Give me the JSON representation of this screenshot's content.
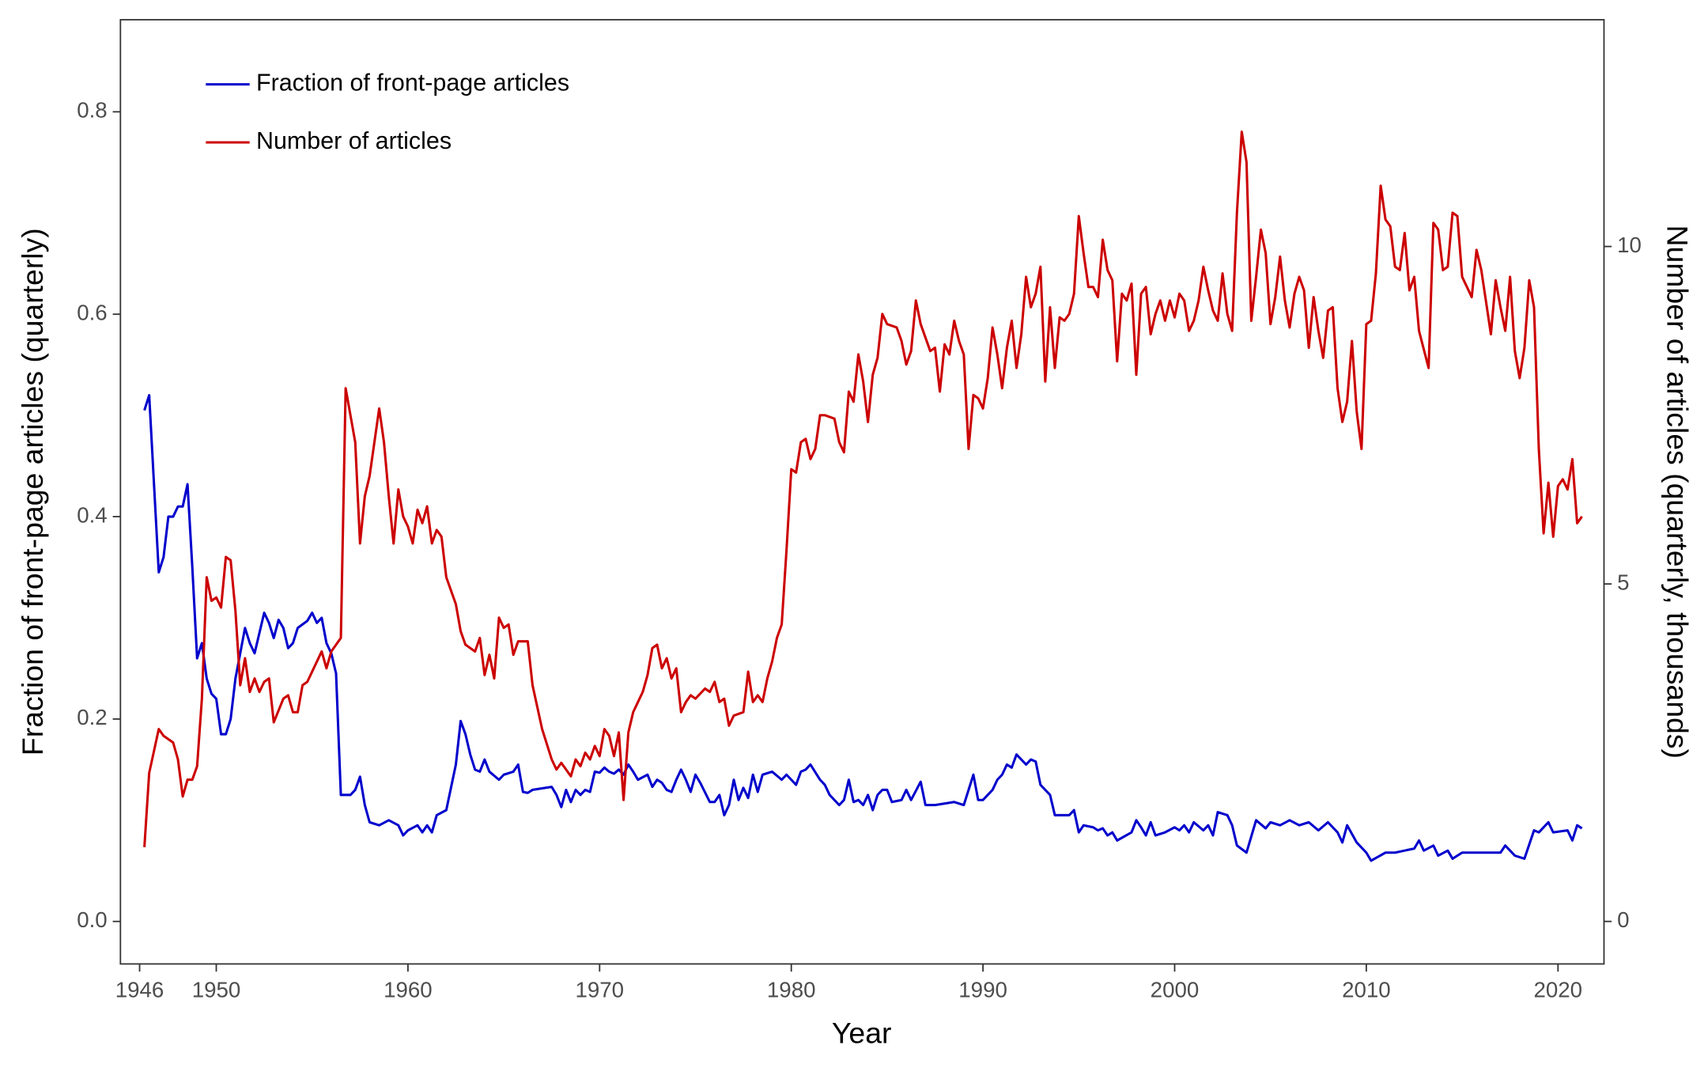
{
  "chart_data": {
    "type": "line",
    "x_label": "Year",
    "y_label": "Fraction of front-page articles (quarterly)",
    "y2_label": "Number of articles (quarterly, thousands)",
    "xlim": [
      1945.0,
      2022.4
    ],
    "xticks": [
      1946,
      1950,
      1960,
      1970,
      1980,
      1990,
      2000,
      2010,
      2020
    ],
    "ylim": [
      -0.042,
      0.891
    ],
    "yticks": [
      {
        "value": 0,
        "label": "0.0"
      },
      0.2,
      0.4,
      0.6,
      0.8
    ],
    "y2lim": [
      -0.63,
      13.36
    ],
    "y2ticks": [
      0,
      5,
      10
    ],
    "legend": "top-left",
    "grid": false,
    "series": [
      {
        "name": "Fraction of front-page articles",
        "color": "#0000cc",
        "x": [
          1946.25,
          1946.5,
          1947,
          1947.25,
          1947.5,
          1947.75,
          1948,
          1948.25,
          1948.5,
          1948.75,
          1949,
          1949.25,
          1949.5,
          1949.75,
          1950,
          1950.25,
          1950.5,
          1950.75,
          1951,
          1951.5,
          1951.75,
          1952,
          1952.5,
          1952.75,
          1953,
          1953.25,
          1953.5,
          1953.75,
          1954,
          1954.25,
          1954.75,
          1955,
          1955.25,
          1955.5,
          1955.75,
          1956,
          1956.25,
          1956.5,
          1957,
          1957.25,
          1957.5,
          1957.75,
          1958,
          1958.5,
          1959,
          1959.5,
          1959.75,
          1960,
          1960.5,
          1960.75,
          1961,
          1961.25,
          1961.5,
          1962,
          1962.5,
          1962.75,
          1963,
          1963.25,
          1963.5,
          1963.75,
          1964,
          1964.25,
          1964.75,
          1965,
          1965.5,
          1965.75,
          1966,
          1966.25,
          1966.5,
          1967.5,
          1967.75,
          1968,
          1968.25,
          1968.5,
          1968.75,
          1969,
          1969.25,
          1969.5,
          1969.75,
          1970,
          1970.25,
          1970.5,
          1970.75,
          1971,
          1971.25,
          1971.5,
          1971.75,
          1972,
          1972.5,
          1972.75,
          1973,
          1973.25,
          1973.5,
          1973.75,
          1974,
          1974.25,
          1974.5,
          1974.75,
          1975,
          1975.25,
          1975.75,
          1976,
          1976.25,
          1976.5,
          1976.75,
          1977,
          1977.25,
          1977.5,
          1977.75,
          1978,
          1978.25,
          1978.5,
          1979,
          1979.5,
          1979.75,
          1980,
          1980.25,
          1980.5,
          1980.75,
          1981,
          1981.5,
          1981.75,
          1982,
          1982.5,
          1982.75,
          1983,
          1983.25,
          1983.5,
          1983.75,
          1984,
          1984.25,
          1984.5,
          1984.75,
          1985,
          1985.25,
          1985.75,
          1986,
          1986.25,
          1986.75,
          1987,
          1987.5,
          1988.5,
          1989,
          1989.5,
          1989.75,
          1990,
          1990.5,
          1990.75,
          1991,
          1991.25,
          1991.5,
          1991.75,
          1992.25,
          1992.5,
          1992.75,
          1993,
          1993.5,
          1993.75,
          1994.5,
          1994.75,
          1995,
          1995.25,
          1995.75,
          1996,
          1996.25,
          1996.5,
          1996.75,
          1997,
          1997.75,
          1998,
          1998.25,
          1998.5,
          1998.75,
          1999,
          1999.5,
          2000,
          2000.25,
          2000.5,
          2000.75,
          2001,
          2001.5,
          2001.75,
          2002,
          2002.25,
          2002.75,
          2003,
          2003.25,
          2003.75,
          2004.25,
          2004.75,
          2005,
          2005.5,
          2006,
          2006.5,
          2007,
          2007.5,
          2008,
          2008.5,
          2008.75,
          2009,
          2009.5,
          2010,
          2010.25,
          2011,
          2011.5,
          2012,
          2012.5,
          2012.75,
          2013,
          2013.5,
          2013.75,
          2014.25,
          2014.5,
          2015,
          2016,
          2017,
          2017.25,
          2017.75,
          2018.25,
          2018.75,
          2019,
          2019.5,
          2019.75,
          2020.5,
          2020.75,
          2021,
          2021.25
        ],
        "values": [
          0.505,
          0.52,
          0.345,
          0.36,
          0.4,
          0.4,
          0.41,
          0.41,
          0.432,
          0.35,
          0.26,
          0.275,
          0.24,
          0.225,
          0.22,
          0.185,
          0.185,
          0.2,
          0.24,
          0.29,
          0.275,
          0.265,
          0.305,
          0.295,
          0.28,
          0.298,
          0.29,
          0.27,
          0.275,
          0.29,
          0.297,
          0.305,
          0.295,
          0.3,
          0.275,
          0.265,
          0.245,
          0.125,
          0.125,
          0.13,
          0.143,
          0.115,
          0.098,
          0.095,
          0.1,
          0.095,
          0.085,
          0.09,
          0.095,
          0.088,
          0.095,
          0.088,
          0.105,
          0.11,
          0.155,
          0.198,
          0.185,
          0.165,
          0.15,
          0.148,
          0.16,
          0.148,
          0.14,
          0.145,
          0.148,
          0.155,
          0.128,
          0.127,
          0.13,
          0.133,
          0.125,
          0.113,
          0.13,
          0.118,
          0.13,
          0.125,
          0.13,
          0.128,
          0.148,
          0.147,
          0.152,
          0.148,
          0.146,
          0.15,
          0.145,
          0.155,
          0.148,
          0.14,
          0.145,
          0.133,
          0.14,
          0.137,
          0.13,
          0.128,
          0.14,
          0.15,
          0.14,
          0.128,
          0.145,
          0.137,
          0.118,
          0.118,
          0.125,
          0.105,
          0.115,
          0.14,
          0.12,
          0.132,
          0.122,
          0.145,
          0.128,
          0.145,
          0.148,
          0.14,
          0.145,
          0.14,
          0.135,
          0.148,
          0.15,
          0.155,
          0.14,
          0.135,
          0.125,
          0.115,
          0.12,
          0.14,
          0.118,
          0.12,
          0.115,
          0.125,
          0.11,
          0.125,
          0.13,
          0.13,
          0.118,
          0.12,
          0.13,
          0.12,
          0.138,
          0.115,
          0.115,
          0.118,
          0.115,
          0.145,
          0.12,
          0.12,
          0.13,
          0.14,
          0.145,
          0.155,
          0.152,
          0.165,
          0.155,
          0.16,
          0.158,
          0.135,
          0.125,
          0.105,
          0.105,
          0.11,
          0.088,
          0.095,
          0.093,
          0.09,
          0.092,
          0.085,
          0.088,
          0.08,
          0.088,
          0.1,
          0.093,
          0.085,
          0.098,
          0.085,
          0.088,
          0.093,
          0.09,
          0.095,
          0.088,
          0.098,
          0.09,
          0.095,
          0.085,
          0.108,
          0.105,
          0.095,
          0.075,
          0.068,
          0.1,
          0.092,
          0.098,
          0.095,
          0.1,
          0.095,
          0.098,
          0.09,
          0.098,
          0.088,
          0.078,
          0.095,
          0.078,
          0.068,
          0.06,
          0.068,
          0.068,
          0.07,
          0.072,
          0.08,
          0.07,
          0.075,
          0.065,
          0.07,
          0.062,
          0.068,
          0.068,
          0.068,
          0.075,
          0.065,
          0.062,
          0.09,
          0.088,
          0.098,
          0.088,
          0.09,
          0.08,
          0.095,
          0.092
        ]
      },
      {
        "name": "Number of articles",
        "color": "#cc0000",
        "axis": "y2",
        "x": [
          1946.25,
          1946.5,
          1947,
          1947.25,
          1947.75,
          1948,
          1948.25,
          1948.5,
          1948.75,
          1949,
          1949.25,
          1949.5,
          1949.75,
          1950,
          1950.25,
          1950.5,
          1950.75,
          1951,
          1951.25,
          1951.5,
          1951.75,
          1952,
          1952.25,
          1952.5,
          1952.75,
          1953,
          1953.5,
          1953.75,
          1954,
          1954.25,
          1954.5,
          1954.75,
          1955,
          1955.5,
          1955.75,
          1956,
          1956.5,
          1956.75,
          1957.25,
          1957.5,
          1957.75,
          1958,
          1958.5,
          1958.75,
          1959,
          1959.25,
          1959.5,
          1959.75,
          1960,
          1960.25,
          1960.5,
          1960.75,
          1961,
          1961.25,
          1961.5,
          1961.75,
          1962,
          1962.5,
          1962.75,
          1963,
          1963.5,
          1963.75,
          1964,
          1964.25,
          1964.5,
          1964.75,
          1965,
          1965.25,
          1965.5,
          1965.75,
          1966.25,
          1966.5,
          1967,
          1967.5,
          1967.75,
          1968,
          1968.25,
          1968.5,
          1968.75,
          1969,
          1969.25,
          1969.5,
          1969.75,
          1970,
          1970.25,
          1970.5,
          1970.75,
          1971,
          1971.25,
          1971.5,
          1971.75,
          1972,
          1972.25,
          1972.5,
          1972.75,
          1973,
          1973.25,
          1973.5,
          1973.75,
          1974,
          1974.25,
          1974.5,
          1974.75,
          1975,
          1975.5,
          1975.75,
          1976,
          1976.25,
          1976.5,
          1976.75,
          1977,
          1977.5,
          1977.75,
          1978,
          1978.25,
          1978.5,
          1978.75,
          1979,
          1979.25,
          1979.5,
          1979.75,
          1980,
          1980.25,
          1980.5,
          1980.75,
          1981,
          1981.25,
          1981.5,
          1981.75,
          1982.25,
          1982.5,
          1982.75,
          1983,
          1983.25,
          1983.5,
          1983.75,
          1984,
          1984.25,
          1984.5,
          1984.75,
          1985,
          1985.5,
          1985.75,
          1986,
          1986.25,
          1986.5,
          1986.75,
          1987.25,
          1987.5,
          1987.75,
          1988,
          1988.25,
          1988.5,
          1988.75,
          1989,
          1989.25,
          1989.5,
          1989.75,
          1990,
          1990.25,
          1990.5,
          1990.75,
          1991,
          1991.25,
          1991.5,
          1991.75,
          1992,
          1992.25,
          1992.5,
          1992.75,
          1993,
          1993.25,
          1993.5,
          1993.75,
          1994,
          1994.25,
          1994.5,
          1994.75,
          1995,
          1995.25,
          1995.5,
          1995.75,
          1996,
          1996.25,
          1996.5,
          1996.75,
          1997,
          1997.25,
          1997.5,
          1997.75,
          1998,
          1998.25,
          1998.5,
          1998.75,
          1999,
          1999.25,
          1999.5,
          1999.75,
          2000,
          2000.25,
          2000.5,
          2000.75,
          2001,
          2001.25,
          2001.5,
          2001.75,
          2002,
          2002.25,
          2002.5,
          2002.75,
          2003,
          2003.25,
          2003.5,
          2003.75,
          2004,
          2004.25,
          2004.5,
          2004.75,
          2005,
          2005.25,
          2005.5,
          2005.75,
          2006,
          2006.25,
          2006.5,
          2006.75,
          2007,
          2007.25,
          2007.5,
          2007.75,
          2008,
          2008.25,
          2008.5,
          2008.75,
          2009,
          2009.25,
          2009.5,
          2009.75,
          2010,
          2010.25,
          2010.5,
          2010.75,
          2011,
          2011.25,
          2011.5,
          2011.75,
          2012,
          2012.25,
          2012.5,
          2012.75,
          2013.25,
          2013.5,
          2013.75,
          2014,
          2014.25,
          2014.5,
          2014.75,
          2015,
          2015.5,
          2015.75,
          2016,
          2016.5,
          2016.75,
          2017,
          2017.25,
          2017.5,
          2017.75,
          2018,
          2018.25,
          2018.5,
          2018.75,
          2019,
          2019.25,
          2019.5,
          2019.75,
          2020,
          2020.25,
          2020.5,
          2020.75,
          2021,
          2021.25
        ],
        "values": [
          1.1,
          2.2,
          2.85,
          2.75,
          2.65,
          2.4,
          1.85,
          2.1,
          2.1,
          2.3,
          3.3,
          5.1,
          4.75,
          4.8,
          4.65,
          5.4,
          5.35,
          4.6,
          3.5,
          3.9,
          3.4,
          3.6,
          3.4,
          3.55,
          3.6,
          2.95,
          3.3,
          3.35,
          3.1,
          3.1,
          3.5,
          3.55,
          3.7,
          4.0,
          3.75,
          4.0,
          4.2,
          7.9,
          7.1,
          5.6,
          6.3,
          6.6,
          7.6,
          7.1,
          6.3,
          5.6,
          6.4,
          6.0,
          5.85,
          5.6,
          6.1,
          5.9,
          6.15,
          5.6,
          5.8,
          5.7,
          5.1,
          4.7,
          4.3,
          4.1,
          4.0,
          4.2,
          3.65,
          3.95,
          3.6,
          4.5,
          4.35,
          4.4,
          3.95,
          4.15,
          4.15,
          3.5,
          2.85,
          2.4,
          2.25,
          2.35,
          2.25,
          2.15,
          2.4,
          2.3,
          2.5,
          2.4,
          2.6,
          2.45,
          2.85,
          2.75,
          2.45,
          2.8,
          1.8,
          2.8,
          3.1,
          3.25,
          3.4,
          3.65,
          4.05,
          4.1,
          3.75,
          3.9,
          3.6,
          3.75,
          3.1,
          3.25,
          3.35,
          3.3,
          3.45,
          3.4,
          3.55,
          3.25,
          3.3,
          2.9,
          3.05,
          3.1,
          3.7,
          3.25,
          3.35,
          3.25,
          3.6,
          3.85,
          4.2,
          4.4,
          5.5,
          6.7,
          6.65,
          7.1,
          7.15,
          6.85,
          7.0,
          7.5,
          7.5,
          7.45,
          7.1,
          6.95,
          7.85,
          7.7,
          8.4,
          8.0,
          7.4,
          8.1,
          8.35,
          9.0,
          8.85,
          8.8,
          8.6,
          8.25,
          8.45,
          9.2,
          8.85,
          8.45,
          8.5,
          7.85,
          8.55,
          8.4,
          8.9,
          8.6,
          8.4,
          7.0,
          7.8,
          7.75,
          7.6,
          8.05,
          8.8,
          8.4,
          7.9,
          8.5,
          8.9,
          8.2,
          8.7,
          9.55,
          9.1,
          9.3,
          9.7,
          8.0,
          9.1,
          8.2,
          8.95,
          8.9,
          9.0,
          9.3,
          10.45,
          9.9,
          9.4,
          9.4,
          9.25,
          10.1,
          9.65,
          9.5,
          8.3,
          9.3,
          9.2,
          9.45,
          8.1,
          9.3,
          9.4,
          8.7,
          9.0,
          9.2,
          8.9,
          9.2,
          8.95,
          9.3,
          9.2,
          8.75,
          8.9,
          9.2,
          9.7,
          9.35,
          9.05,
          8.9,
          9.6,
          9.0,
          8.75,
          10.5,
          11.7,
          11.25,
          8.9,
          9.55,
          10.25,
          9.9,
          8.85,
          9.25,
          9.85,
          9.2,
          8.8,
          9.3,
          9.55,
          9.35,
          8.5,
          9.25,
          8.75,
          8.35,
          9.05,
          9.1,
          7.9,
          7.4,
          7.7,
          8.6,
          7.55,
          7.0,
          8.85,
          8.9,
          9.6,
          10.9,
          10.4,
          10.3,
          9.7,
          9.65,
          10.2,
          9.35,
          9.55,
          8.75,
          8.2,
          10.35,
          10.25,
          9.65,
          9.7,
          10.5,
          10.45,
          9.55,
          9.25,
          9.95,
          9.65,
          8.7,
          9.5,
          9.1,
          8.75,
          9.55,
          8.45,
          8.05,
          8.5,
          9.5,
          9.1,
          7.0,
          5.75,
          6.5,
          5.7,
          6.45,
          6.55,
          6.4,
          6.85,
          5.9,
          6.0
        ]
      }
    ]
  }
}
